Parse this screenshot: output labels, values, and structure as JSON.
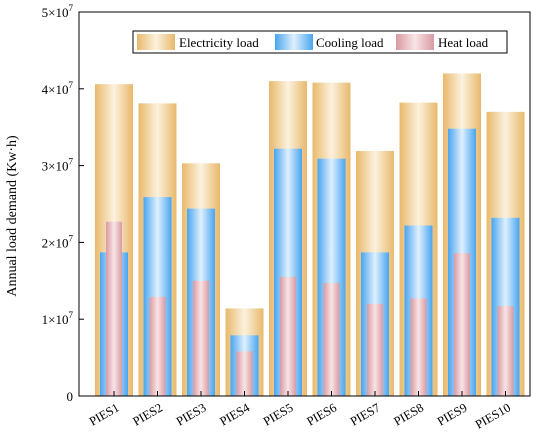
{
  "chart_data": {
    "type": "bar",
    "title": "",
    "xlabel": "",
    "ylabel": "Annual load demand (Kw·h)",
    "ylim": [
      0,
      50000000
    ],
    "y_ticks": [
      {
        "value": 0,
        "base": "0",
        "exp": ""
      },
      {
        "value": 10000000,
        "base": "1×10",
        "exp": "7"
      },
      {
        "value": 20000000,
        "base": "2×10",
        "exp": "7"
      },
      {
        "value": 30000000,
        "base": "3×10",
        "exp": "7"
      },
      {
        "value": 40000000,
        "base": "4×10",
        "exp": "7"
      },
      {
        "value": 50000000,
        "base": "5×10",
        "exp": "7"
      }
    ],
    "grid": false,
    "legend_position": "top-right",
    "categories": [
      "PIES1",
      "PIES2",
      "PIES3",
      "PIES4",
      "PIES5",
      "PIES6",
      "PIES7",
      "PIES8",
      "PIES9",
      "PIES10"
    ],
    "series": [
      {
        "name": "Electricity load",
        "color": "#e8b96c",
        "values": [
          40600000,
          38100000,
          30300000,
          11400000,
          41000000,
          40800000,
          31900000,
          38200000,
          42000000,
          37000000
        ]
      },
      {
        "name": "Cooling load",
        "color": "#4aa6ef",
        "values": [
          18700000,
          25900000,
          24400000,
          7900000,
          32200000,
          30900000,
          18700000,
          22200000,
          34800000,
          23200000
        ]
      },
      {
        "name": "Heat load",
        "color": "#d9909a",
        "values": [
          22700000,
          12900000,
          15000000,
          5800000,
          15500000,
          14700000,
          12000000,
          12700000,
          18600000,
          11700000
        ]
      }
    ]
  }
}
